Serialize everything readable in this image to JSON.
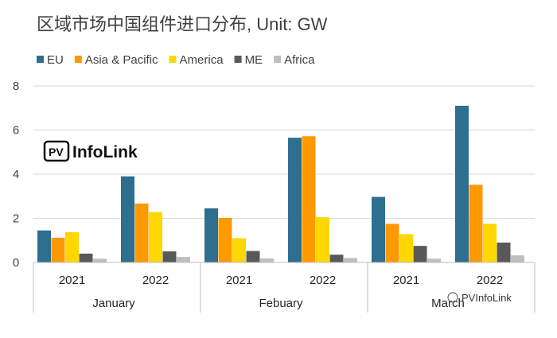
{
  "chart_data": {
    "type": "bar",
    "title": "区域市场中国组件进口分布, Unit: GW",
    "xlabel": "",
    "ylabel": "",
    "ylim": [
      0,
      8
    ],
    "yticks": [
      0,
      2,
      4,
      6,
      8
    ],
    "grid": true,
    "legend_position": "top-left",
    "groups": [
      {
        "label": "January",
        "categories": [
          "2021",
          "2022"
        ]
      },
      {
        "label": "Febuary",
        "categories": [
          "2021",
          "2022"
        ]
      },
      {
        "label": "March",
        "categories": [
          "2021",
          "2022"
        ]
      }
    ],
    "categories": [
      "January 2021",
      "January 2022",
      "Febuary 2021",
      "Febuary 2022",
      "March 2021",
      "March 2022"
    ],
    "series": [
      {
        "name": "EU",
        "color": "#2E6E8E",
        "values": [
          1.45,
          3.9,
          2.45,
          5.65,
          2.97,
          7.1
        ]
      },
      {
        "name": "Asia & Pacific",
        "color": "#FF9900",
        "values": [
          1.12,
          2.67,
          2.02,
          5.72,
          1.75,
          3.52
        ]
      },
      {
        "name": "America",
        "color": "#FFD700",
        "values": [
          1.37,
          2.28,
          1.1,
          2.05,
          1.28,
          1.75
        ]
      },
      {
        "name": "ME",
        "color": "#595959",
        "values": [
          0.4,
          0.5,
          0.52,
          0.35,
          0.75,
          0.9
        ]
      },
      {
        "name": "Africa",
        "color": "#BFBFBF",
        "values": [
          0.17,
          0.25,
          0.18,
          0.2,
          0.17,
          0.32
        ]
      }
    ]
  },
  "logo": {
    "text": "InfoLink",
    "badge": "PV"
  },
  "watermark": {
    "text": "PVInfoLink"
  }
}
